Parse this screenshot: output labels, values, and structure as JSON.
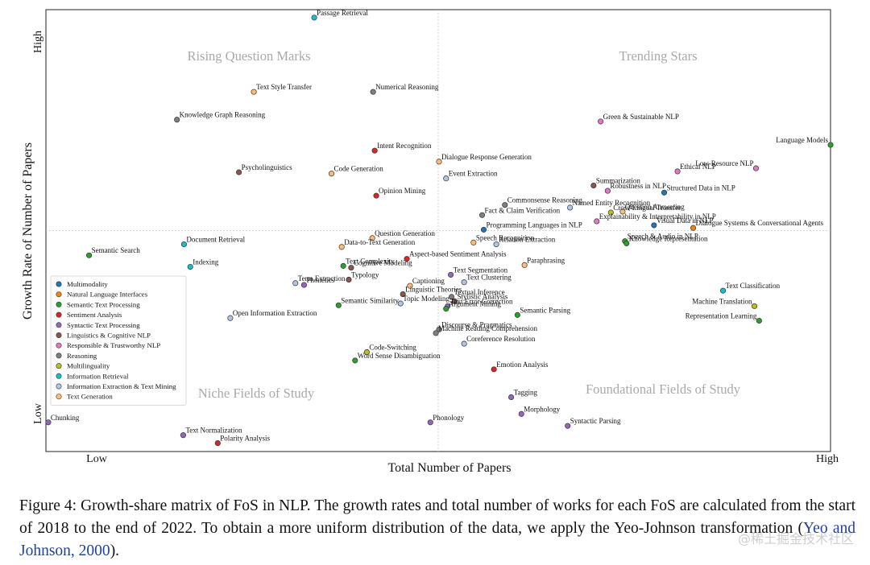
{
  "chart_data": {
    "type": "scatter",
    "title": "",
    "xlabel": "Total Number of Papers",
    "ylabel": "Growth Rate of Number of Papers",
    "xlim": [
      0,
      100
    ],
    "ylim": [
      0,
      100
    ],
    "x_ticks": {
      "low": "Low",
      "high": "High"
    },
    "y_ticks": {
      "low": "Low",
      "high": "High"
    },
    "quadrants": {
      "top_left": "Rising Question Marks",
      "top_right": "Trending Stars",
      "bottom_left": "Niche Fields of Study",
      "bottom_right": "Foundational Fields of Study"
    },
    "categories": [
      {
        "name": "Multimodality",
        "color": "#1f77b4"
      },
      {
        "name": "Natural Language Interfaces",
        "color": "#ff7f0e"
      },
      {
        "name": "Semantic Text Processing",
        "color": "#2ca02c"
      },
      {
        "name": "Sentiment Analysis",
        "color": "#d62728"
      },
      {
        "name": "Syntactic Text Processing",
        "color": "#9467bd"
      },
      {
        "name": "Linguistics & Cognitive NLP",
        "color": "#8c564b"
      },
      {
        "name": "Responsible & Trustworthy NLP",
        "color": "#e377c2"
      },
      {
        "name": "Reasoning",
        "color": "#7f7f7f"
      },
      {
        "name": "Multilinguality",
        "color": "#bcbd22"
      },
      {
        "name": "Information Retrieval",
        "color": "#17becf"
      },
      {
        "name": "Information Extraction & Text Mining",
        "color": "#aec7e8"
      },
      {
        "name": "Text Generation",
        "color": "#ffbb78"
      }
    ],
    "points": [
      {
        "label": "Passage Retrieval",
        "x": 34.2,
        "y": 98.2,
        "cat": 9
      },
      {
        "label": "Text Style Transfer",
        "x": 26.5,
        "y": 81.4,
        "cat": 11
      },
      {
        "label": "Numerical Reasoning",
        "x": 41.7,
        "y": 81.4,
        "cat": 7
      },
      {
        "label": "Knowledge Graph Reasoning",
        "x": 16.7,
        "y": 75.1,
        "cat": 7
      },
      {
        "label": "Green & Sustainable NLP",
        "x": 70.7,
        "y": 74.7,
        "cat": 6
      },
      {
        "label": "Language Models",
        "x": 102.6,
        "y": 69.4,
        "cat": 2
      },
      {
        "label": "Intent Recognition",
        "x": 41.9,
        "y": 68.1,
        "cat": 3
      },
      {
        "label": "Dialogue Response Generation",
        "x": 50.1,
        "y": 65.6,
        "cat": 11
      },
      {
        "label": "Psycholinguistics",
        "x": 24.6,
        "y": 63.2,
        "cat": 5
      },
      {
        "label": "Code Generation",
        "x": 36.4,
        "y": 62.9,
        "cat": 11
      },
      {
        "label": "Event Extraction",
        "x": 51.0,
        "y": 61.8,
        "cat": 10
      },
      {
        "label": "Ethical NLP",
        "x": 80.5,
        "y": 63.4,
        "cat": 6
      },
      {
        "label": "Low-Resource NLP",
        "x": 90.5,
        "y": 64.1,
        "cat": 6
      },
      {
        "label": "Summarization",
        "x": 69.8,
        "y": 60.2,
        "cat": 5
      },
      {
        "label": "Robustness in NLP",
        "x": 71.6,
        "y": 59.0,
        "cat": 6
      },
      {
        "label": "Structured Data in NLP",
        "x": 78.8,
        "y": 58.6,
        "cat": 0
      },
      {
        "label": "Opinion Mining",
        "x": 42.1,
        "y": 57.9,
        "cat": 3
      },
      {
        "label": "Commonsense Reasoning",
        "x": 58.5,
        "y": 55.8,
        "cat": 7
      },
      {
        "label": "Named Entity Recognition",
        "x": 66.8,
        "y": 55.2,
        "cat": 10
      },
      {
        "label": "Question Answering",
        "x": 73.5,
        "y": 54.3,
        "cat": 11
      },
      {
        "label": "Cross-Lingual Transfer",
        "x": 72.0,
        "y": 54.1,
        "cat": 8
      },
      {
        "label": "Fact & Claim Verification",
        "x": 55.6,
        "y": 53.5,
        "cat": 7
      },
      {
        "label": "Explainability & Interpretability in NLP",
        "x": 70.2,
        "y": 52.1,
        "cat": 6
      },
      {
        "label": "Visual Data in NLP",
        "x": 77.5,
        "y": 51.2,
        "cat": 0
      },
      {
        "label": "Dialogue Systems & Conversational Agents",
        "x": 82.5,
        "y": 50.6,
        "cat": 1
      },
      {
        "label": "Programming Languages in NLP",
        "x": 55.8,
        "y": 50.2,
        "cat": 0
      },
      {
        "label": "Question Generation",
        "x": 41.6,
        "y": 48.3,
        "cat": 11
      },
      {
        "label": "Document Retrieval",
        "x": 17.6,
        "y": 46.9,
        "cat": 9
      },
      {
        "label": "Speech Recognition",
        "x": 54.5,
        "y": 47.3,
        "cat": 11
      },
      {
        "label": "Speech & Audio in NLP",
        "x": 73.8,
        "y": 47.6,
        "cat": 2
      },
      {
        "label": "Relation Extraction",
        "x": 57.4,
        "y": 46.9,
        "cat": 10
      },
      {
        "label": "Knowledge Representation",
        "x": 74.0,
        "y": 47.1,
        "cat": 2
      },
      {
        "label": "Data-to-Text Generation",
        "x": 37.7,
        "y": 46.3,
        "cat": 11
      },
      {
        "label": "Semantic Search",
        "x": 5.5,
        "y": 44.4,
        "cat": 2
      },
      {
        "label": "Aspect-based Sentiment Analysis",
        "x": 46.0,
        "y": 43.6,
        "cat": 3
      },
      {
        "label": "Text Complexity",
        "x": 37.9,
        "y": 42.0,
        "cat": 2
      },
      {
        "label": "Indexing",
        "x": 18.4,
        "y": 41.8,
        "cat": 9
      },
      {
        "label": "Paraphrasing",
        "x": 61.0,
        "y": 42.2,
        "cat": 11
      },
      {
        "label": "Cognitive Modeling",
        "x": 38.9,
        "y": 41.6,
        "cat": 5
      },
      {
        "label": "Text Segmentation",
        "x": 51.6,
        "y": 40.0,
        "cat": 4
      },
      {
        "label": "Term Extraction",
        "x": 31.8,
        "y": 38.1,
        "cat": 10
      },
      {
        "label": "Phonetics",
        "x": 32.9,
        "y": 37.7,
        "cat": 4
      },
      {
        "label": "Typology",
        "x": 38.6,
        "y": 38.9,
        "cat": 5
      },
      {
        "label": "Captioning",
        "x": 46.4,
        "y": 37.5,
        "cat": 11
      },
      {
        "label": "Text Clustering",
        "x": 53.3,
        "y": 38.3,
        "cat": 10
      },
      {
        "label": "Linguistic Theories",
        "x": 45.5,
        "y": 35.6,
        "cat": 5
      },
      {
        "label": "Textual Inference",
        "x": 51.7,
        "y": 35.0,
        "cat": 7
      },
      {
        "label": "Semantic Similarity",
        "x": 37.3,
        "y": 33.1,
        "cat": 2
      },
      {
        "label": "Stylistic Analysis",
        "x": 52.1,
        "y": 34.0,
        "cat": 5
      },
      {
        "label": "Text Error Correction",
        "x": 51.2,
        "y": 32.9,
        "cat": 4
      },
      {
        "label": "Topic Modeling",
        "x": 45.2,
        "y": 33.5,
        "cat": 10
      },
      {
        "label": "Argument Mining",
        "x": 51.0,
        "y": 32.3,
        "cat": 2
      },
      {
        "label": "Semantic Parsing",
        "x": 60.1,
        "y": 30.9,
        "cat": 2
      },
      {
        "label": "Open Information Extraction",
        "x": 23.5,
        "y": 30.2,
        "cat": 10
      },
      {
        "label": "Discourse & Pragmatics",
        "x": 50.1,
        "y": 27.6,
        "cat": 7
      },
      {
        "label": "Machine Reading Comprehension",
        "x": 49.7,
        "y": 26.8,
        "cat": 7
      },
      {
        "label": "Coreference Resolution",
        "x": 53.3,
        "y": 24.4,
        "cat": 10
      },
      {
        "label": "Text Classification",
        "x": 86.3,
        "y": 36.4,
        "cat": 9
      },
      {
        "label": "Machine Translation",
        "x": 90.3,
        "y": 32.9,
        "cat": 8
      },
      {
        "label": "Representation Learning",
        "x": 90.9,
        "y": 29.6,
        "cat": 2
      },
      {
        "label": "Code-Switching",
        "x": 40.9,
        "y": 22.5,
        "cat": 8
      },
      {
        "label": "Word Sense Disambiguation",
        "x": 39.4,
        "y": 20.6,
        "cat": 2
      },
      {
        "label": "Emotion Analysis",
        "x": 57.1,
        "y": 18.6,
        "cat": 3
      },
      {
        "label": "Tagging",
        "x": 59.3,
        "y": 12.3,
        "cat": 4
      },
      {
        "label": "Morphology",
        "x": 60.6,
        "y": 8.5,
        "cat": 4
      },
      {
        "label": "Syntactic Parsing",
        "x": 66.5,
        "y": 5.8,
        "cat": 4
      },
      {
        "label": "Phonology",
        "x": 49.0,
        "y": 6.6,
        "cat": 4
      },
      {
        "label": "Chunking",
        "x": 0.3,
        "y": 6.6,
        "cat": 4
      },
      {
        "label": "Text Normalization",
        "x": 17.5,
        "y": 3.7,
        "cat": 4
      },
      {
        "label": "Polarity Analysis",
        "x": 21.9,
        "y": 1.9,
        "cat": 3
      }
    ]
  },
  "caption": {
    "prefix": "Figure 4: Growth-share matrix of FoS in NLP. The growth rates and total number of works for each FoS are calculated from the start of 2018 to the end of 2022. To obtain a more uniform distribution of the data, we apply the Yeo-Johnson transformation (",
    "citation": "Yeo and Johnson, 2000",
    "suffix": ")."
  },
  "watermark": "@稀土掘金技术社区"
}
